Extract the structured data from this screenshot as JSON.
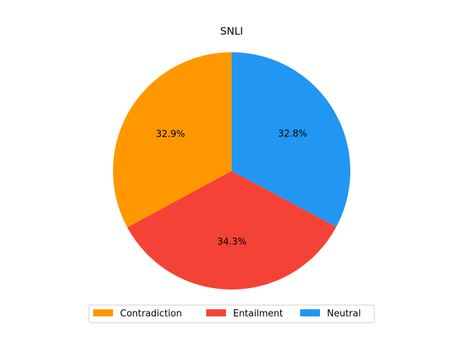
{
  "chart_data": {
    "type": "pie",
    "title": "SNLI",
    "start_angle_deg": 90,
    "direction": "counterclockwise",
    "legend_placement": "bottom-center",
    "series": [
      {
        "label": "Contradiction",
        "value": 32.9,
        "pct_label": "32.9%",
        "color": "#FF9800"
      },
      {
        "label": "Entailment",
        "value": 34.3,
        "pct_label": "34.3%",
        "color": "#F44336"
      },
      {
        "label": "Neutral",
        "value": 32.8,
        "pct_label": "32.8%",
        "color": "#2196F3"
      }
    ]
  }
}
